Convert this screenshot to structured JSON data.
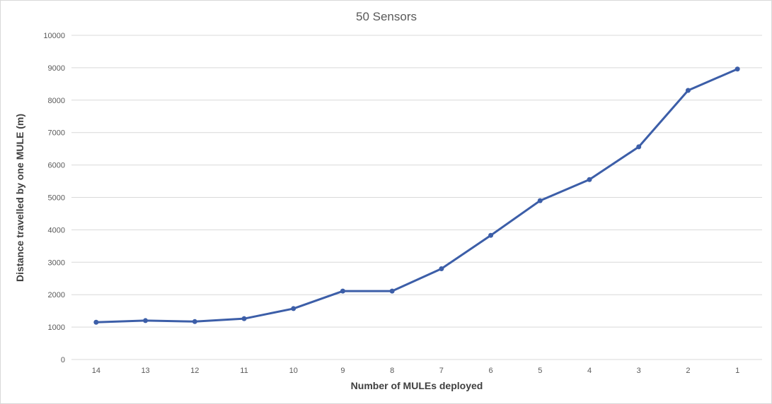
{
  "chart_data": {
    "type": "line",
    "title": "50 Sensors",
    "xlabel": "Number of MULEs deployed",
    "ylabel": "Distance travelled by one MULE (m)",
    "categories": [
      "14",
      "13",
      "12",
      "11",
      "10",
      "9",
      "8",
      "7",
      "6",
      "5",
      "4",
      "3",
      "2",
      "1"
    ],
    "series": [
      {
        "values": [
          1150,
          1200,
          1170,
          1260,
          1570,
          2110,
          2110,
          2800,
          3830,
          4900,
          5550,
          6560,
          8300,
          8960
        ]
      }
    ],
    "ylim": [
      0,
      10000
    ],
    "yticks": [
      "0",
      "1000",
      "2000",
      "3000",
      "4000",
      "5000",
      "6000",
      "7000",
      "8000",
      "9000",
      "10000"
    ],
    "grid": true,
    "legend": "none",
    "colors": {
      "line": "#3c5ea8",
      "grid": "#d9d9d9"
    }
  }
}
